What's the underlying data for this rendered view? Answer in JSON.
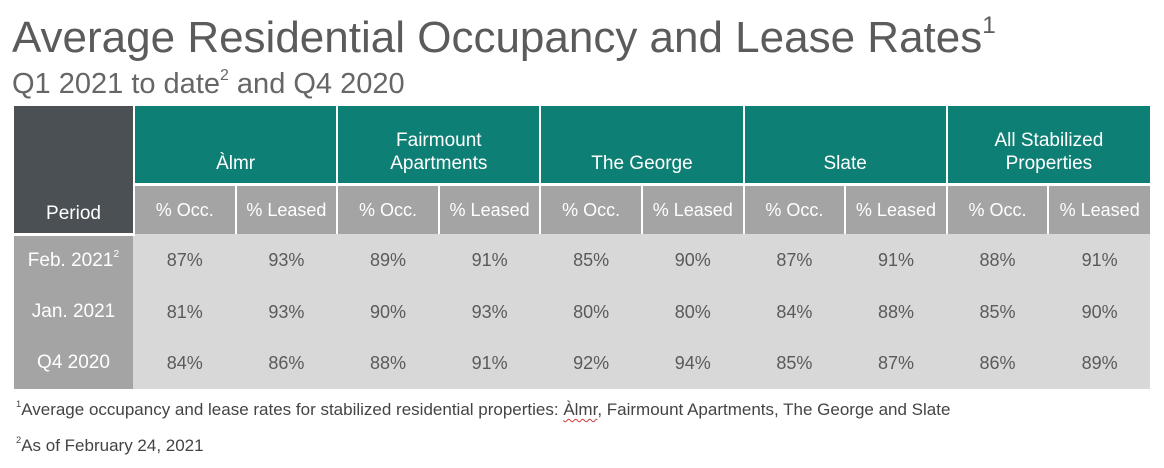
{
  "title": "Average Residential Occupancy and Lease Rates",
  "title_sup": "1",
  "subtitle_pre": "Q1 2021 to date",
  "subtitle_sup": "2",
  "subtitle_post": " and Q4 2020",
  "table": {
    "period_header": "Period",
    "properties": [
      {
        "name": "Àlmr"
      },
      {
        "name": "Fairmount Apartments"
      },
      {
        "name": "The George"
      },
      {
        "name": "Slate"
      },
      {
        "name": "All Stabilized Properties"
      }
    ],
    "occ_label": "% Occ.",
    "leased_label": "% Leased",
    "rows": [
      {
        "period": "Feb. 2021",
        "sup": "2",
        "values": [
          "87%",
          "93%",
          "89%",
          "91%",
          "85%",
          "90%",
          "87%",
          "91%",
          "88%",
          "91%"
        ]
      },
      {
        "period": "Jan. 2021",
        "sup": "",
        "values": [
          "81%",
          "93%",
          "90%",
          "93%",
          "80%",
          "80%",
          "84%",
          "88%",
          "85%",
          "90%"
        ]
      },
      {
        "period": "Q4 2020",
        "sup": "",
        "values": [
          "84%",
          "86%",
          "88%",
          "91%",
          "92%",
          "94%",
          "85%",
          "87%",
          "86%",
          "89%"
        ]
      }
    ]
  },
  "footnotes": {
    "fn1_sup": "1",
    "fn1_pre": "Average occupancy and lease rates for stabilized residential properties: ",
    "fn1_highlight": "Àlmr",
    "fn1_post": ", Fairmount Apartments, The George and Slate",
    "fn2_sup": "2",
    "fn2_text": "As of February 24, 2021"
  },
  "colors": {
    "header_teal": "#0e7f74",
    "period_dark": "#4b5054",
    "subheader_gray": "#a4a4a4",
    "cell_gray": "#d8d8d8"
  }
}
